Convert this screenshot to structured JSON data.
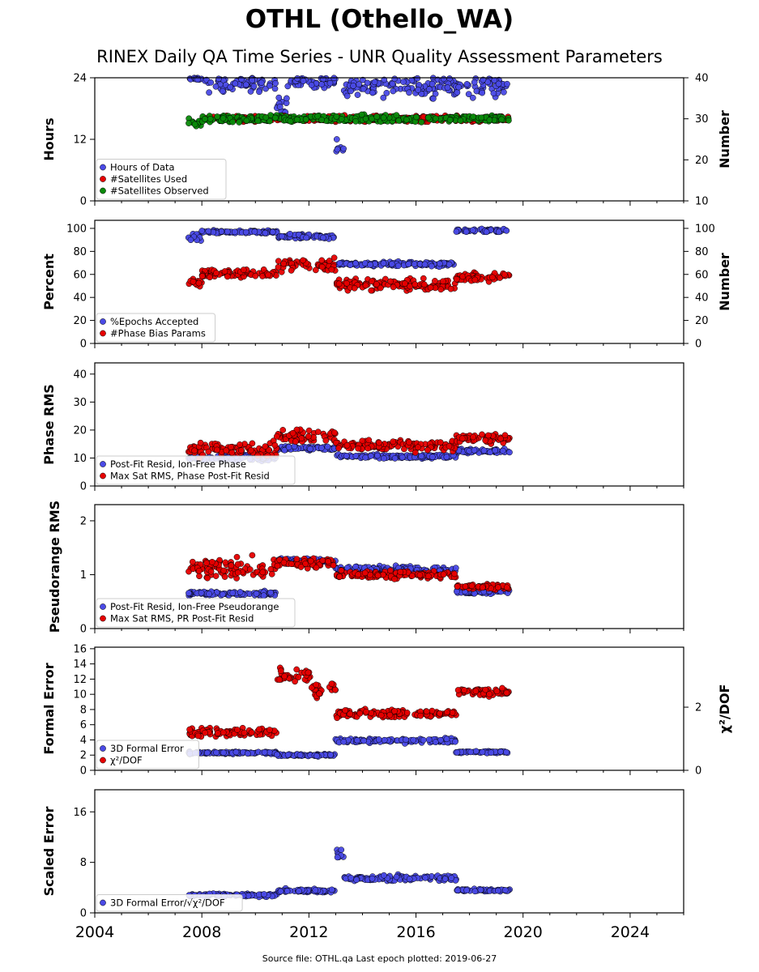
{
  "header": {
    "title": "OTHL (Othello_WA)",
    "subtitle": "RINEX Daily QA Time Series - UNR Quality Assessment Parameters"
  },
  "footer": {
    "text": "Source file: OTHL.qa Last epoch plotted: 2019-06-27"
  },
  "colors": {
    "blue": "#4a4ae6",
    "red": "#e60000",
    "green": "#0a8a0a"
  },
  "chart_data": [
    {
      "type": "scatter",
      "ylabel": "Hours",
      "y2label": "Number",
      "xlim": [
        2004,
        2026
      ],
      "ylim": [
        0,
        24
      ],
      "yticks": [
        0,
        12,
        24
      ],
      "y2lim": [
        10,
        40
      ],
      "y2ticks": [
        10,
        20,
        30,
        40
      ],
      "legend_position": "lower-left",
      "series": [
        {
          "name": "Hours of Data",
          "axis": "left",
          "color": "#4a4ae6",
          "segments": [
            {
              "x": [
                2007.5,
                2008.0
              ],
              "y": 23.8,
              "spread": 0.5
            },
            {
              "x": [
                2008.0,
                2010.8
              ],
              "y": 23.0,
              "spread": 2.5
            },
            {
              "x": [
                2010.8,
                2011.2
              ],
              "y": 19.0,
              "spread": 2.5
            },
            {
              "x": [
                2011.2,
                2013.0
              ],
              "y": 23.2,
              "spread": 2.0
            },
            {
              "x": [
                2013.0,
                2013.3
              ],
              "y": 10.0,
              "spread": 3.0
            },
            {
              "x": [
                2013.3,
                2019.5
              ],
              "y": 22.5,
              "spread": 3.0
            }
          ]
        },
        {
          "name": "#Satellites Used",
          "axis": "right",
          "color": "#e60000",
          "segments": [
            {
              "x": [
                2008.0,
                2019.5
              ],
              "y": 30.0,
              "spread": 1.0
            }
          ]
        },
        {
          "name": "#Satellites Observed",
          "axis": "right",
          "color": "#0a8a0a",
          "segments": [
            {
              "x": [
                2007.5,
                2008.0
              ],
              "y": 29.0,
              "spread": 2.0
            },
            {
              "x": [
                2008.0,
                2019.5
              ],
              "y": 30.0,
              "spread": 1.2
            }
          ]
        }
      ]
    },
    {
      "type": "scatter",
      "ylabel": "Percent",
      "y2label": "Number",
      "xlim": [
        2004,
        2026
      ],
      "ylim": [
        0,
        107
      ],
      "yticks": [
        0,
        20,
        40,
        60,
        80,
        100
      ],
      "y2lim": [
        0,
        107
      ],
      "y2ticks": [
        0,
        20,
        40,
        60,
        80,
        100
      ],
      "legend_position": "lower-left",
      "series": [
        {
          "name": "%Epochs Accepted",
          "axis": "left",
          "color": "#4a4ae6",
          "segments": [
            {
              "x": [
                2007.5,
                2008.0
              ],
              "y": 92,
              "spread": 5
            },
            {
              "x": [
                2008.0,
                2010.8
              ],
              "y": 97,
              "spread": 2
            },
            {
              "x": [
                2010.8,
                2013.0
              ],
              "y": 93,
              "spread": 3
            },
            {
              "x": [
                2013.0,
                2017.5
              ],
              "y": 69,
              "spread": 3
            },
            {
              "x": [
                2017.5,
                2019.5
              ],
              "y": 98,
              "spread": 2
            }
          ]
        },
        {
          "name": "#Phase Bias Params",
          "axis": "right",
          "color": "#e60000",
          "segments": [
            {
              "x": [
                2007.5,
                2008.0
              ],
              "y": 53,
              "spread": 4
            },
            {
              "x": [
                2008.0,
                2010.8
              ],
              "y": 61,
              "spread": 6
            },
            {
              "x": [
                2010.8,
                2013.0
              ],
              "y": 68,
              "spread": 8
            },
            {
              "x": [
                2013.0,
                2017.5
              ],
              "y": 51,
              "spread": 7
            },
            {
              "x": [
                2017.5,
                2019.5
              ],
              "y": 58,
              "spread": 5
            }
          ]
        }
      ]
    },
    {
      "type": "scatter",
      "ylabel": "Phase RMS",
      "xlim": [
        2004,
        2026
      ],
      "ylim": [
        0,
        44
      ],
      "yticks": [
        0,
        10,
        20,
        30,
        40
      ],
      "legend_position": "lower-left",
      "series": [
        {
          "name": "Post-Fit Resid, Ion-Free Phase",
          "axis": "left",
          "color": "#4a4ae6",
          "segments": [
            {
              "x": [
                2007.5,
                2010.8
              ],
              "y": 10.0,
              "spread": 1.5
            },
            {
              "x": [
                2010.8,
                2013.0
              ],
              "y": 13.5,
              "spread": 1.0
            },
            {
              "x": [
                2013.0,
                2017.5
              ],
              "y": 10.5,
              "spread": 1.0
            },
            {
              "x": [
                2017.5,
                2019.5
              ],
              "y": 12.5,
              "spread": 1.0
            }
          ]
        },
        {
          "name": "Max Sat RMS, Phase Post-Fit Resid",
          "axis": "left",
          "color": "#e60000",
          "segments": [
            {
              "x": [
                2007.5,
                2010.8
              ],
              "y": 13.0,
              "spread": 4.0
            },
            {
              "x": [
                2010.8,
                2013.0
              ],
              "y": 18.0,
              "spread": 3.0
            },
            {
              "x": [
                2013.0,
                2017.5
              ],
              "y": 14.5,
              "spread": 3.0
            },
            {
              "x": [
                2017.5,
                2019.5
              ],
              "y": 17.0,
              "spread": 2.5
            }
          ]
        }
      ]
    },
    {
      "type": "scatter",
      "ylabel": "Pseudorange RMS",
      "xlim": [
        2004,
        2026
      ],
      "ylim": [
        0,
        2.3
      ],
      "yticks": [
        0,
        1,
        2
      ],
      "legend_position": "lower-left",
      "series": [
        {
          "name": "Post-Fit Resid, Ion-Free Pseudorange",
          "axis": "left",
          "color": "#4a4ae6",
          "segments": [
            {
              "x": [
                2007.5,
                2010.8
              ],
              "y": 0.65,
              "spread": 0.06
            },
            {
              "x": [
                2010.8,
                2013.0
              ],
              "y": 1.25,
              "spread": 0.08
            },
            {
              "x": [
                2013.0,
                2017.5
              ],
              "y": 1.1,
              "spread": 0.08
            },
            {
              "x": [
                2017.5,
                2019.5
              ],
              "y": 0.68,
              "spread": 0.05
            }
          ]
        },
        {
          "name": "Max Sat RMS, PR Post-Fit Resid",
          "axis": "left",
          "color": "#e60000",
          "segments": [
            {
              "x": [
                2007.5,
                2010.8
              ],
              "y": 1.1,
              "spread": 0.3
            },
            {
              "x": [
                2010.8,
                2013.0
              ],
              "y": 1.22,
              "spread": 0.12
            },
            {
              "x": [
                2013.0,
                2017.5
              ],
              "y": 1.0,
              "spread": 0.1
            },
            {
              "x": [
                2017.5,
                2019.5
              ],
              "y": 0.78,
              "spread": 0.08
            }
          ]
        }
      ]
    },
    {
      "type": "scatter",
      "ylabel": "Formal Error",
      "y2label": "χ²/DOF",
      "xlim": [
        2004,
        2026
      ],
      "ylim": [
        0,
        16.2
      ],
      "yticks": [
        0,
        2,
        4,
        6,
        8,
        10,
        12,
        14,
        16
      ],
      "y2lim": [
        0,
        3.9
      ],
      "y2ticks": [
        0,
        2
      ],
      "legend_position": "lower-left",
      "series": [
        {
          "name": "3D Formal Error",
          "axis": "left",
          "color": "#4a4ae6",
          "segments": [
            {
              "x": [
                2007.5,
                2010.8
              ],
              "y": 2.3,
              "spread": 0.2
            },
            {
              "x": [
                2010.8,
                2013.0
              ],
              "y": 2.0,
              "spread": 0.2
            },
            {
              "x": [
                2013.0,
                2017.5
              ],
              "y": 3.9,
              "spread": 0.4
            },
            {
              "x": [
                2017.5,
                2019.5
              ],
              "y": 2.4,
              "spread": 0.2
            }
          ]
        },
        {
          "name": "χ²/DOF",
          "axis": "right",
          "color": "#e60000",
          "segments": [
            {
              "x": [
                2007.5,
                2010.8
              ],
              "y": 1.2,
              "spread": 0.2
            },
            {
              "x": [
                2010.8,
                2012.1
              ],
              "y": 3.0,
              "spread": 0.3
            },
            {
              "x": [
                2012.1,
                2013.0
              ],
              "y": 2.5,
              "spread": 0.3
            },
            {
              "x": [
                2013.0,
                2017.5
              ],
              "y": 1.8,
              "spread": 0.2
            },
            {
              "x": [
                2017.5,
                2019.5
              ],
              "y": 2.5,
              "spread": 0.2
            }
          ]
        }
      ]
    },
    {
      "type": "scatter",
      "ylabel": "Scaled Error",
      "xlim": [
        2004,
        2026
      ],
      "ylim": [
        0,
        19.5
      ],
      "yticks": [
        0,
        8,
        16
      ],
      "xticks": [
        2004,
        2008,
        2012,
        2016,
        2020,
        2024
      ],
      "legend_position": "lower-left",
      "series": [
        {
          "name": "3D Formal Error/√χ²/DOF",
          "axis": "left",
          "color": "#4a4ae6",
          "segments": [
            {
              "x": [
                2007.5,
                2010.8
              ],
              "y": 2.8,
              "spread": 0.4
            },
            {
              "x": [
                2010.8,
                2013.0
              ],
              "y": 3.5,
              "spread": 0.4
            },
            {
              "x": [
                2013.0,
                2013.3
              ],
              "y": 9.5,
              "spread": 1.5
            },
            {
              "x": [
                2013.3,
                2017.5
              ],
              "y": 5.5,
              "spread": 0.6
            },
            {
              "x": [
                2017.5,
                2019.5
              ],
              "y": 3.6,
              "spread": 0.3
            }
          ]
        }
      ]
    }
  ]
}
